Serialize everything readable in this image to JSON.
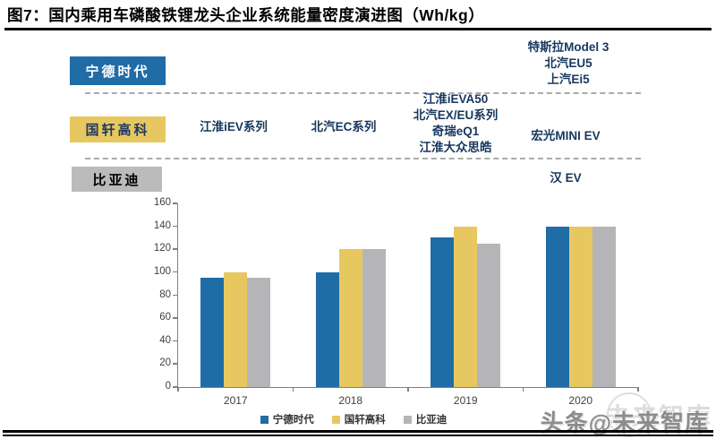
{
  "title": "图7：国内乘用车磷酸铁锂龙头企业系统能量密度演进图（Wh/kg）",
  "colors": {
    "catl_blue": "#1F6CA7",
    "gotion_yellow": "#E7C860",
    "byd_gray": "#B5B5B8",
    "annotation_navy": "#17375E",
    "gotion_box_text": "#1F3864",
    "axis_gray": "#7F7F7F"
  },
  "annotations": {
    "catl": {
      "label": "宁德时代",
      "y2020": [
        "特斯拉Model 3",
        "北汽EU5",
        "上汽Ei5"
      ]
    },
    "gotion": {
      "label": "国轩高科",
      "y2017": "江淮iEV系列",
      "y2018": "北汽EC系列",
      "y2019": [
        "江淮iEVA50",
        "北汽EX/EU系列",
        "奇瑞eQ1",
        "江淮大众思皓"
      ],
      "y2020": "宏光MINI EV"
    },
    "byd": {
      "label": "比亚迪",
      "y2020": "汉 EV"
    }
  },
  "chart_data": {
    "type": "bar",
    "title": "国内乘用车磷酸铁锂龙头企业系统能量密度演进（Wh/kg）",
    "categories": [
      "2017",
      "2018",
      "2019",
      "2020"
    ],
    "series": [
      {
        "name": "宁德时代",
        "color": "#1F6CA7",
        "values": [
          95,
          100,
          130,
          140
        ]
      },
      {
        "name": "国轩高科",
        "color": "#E7C860",
        "values": [
          100,
          120,
          140,
          140
        ]
      },
      {
        "name": "比亚迪",
        "color": "#B5B5B8",
        "values": [
          95,
          120,
          125,
          140
        ]
      }
    ],
    "xlabel": "",
    "ylabel": "",
    "ylim": [
      0,
      160
    ],
    "ytick_step": 20,
    "grid": false,
    "legend_position": "bottom"
  },
  "watermark": {
    "ghost": "未来智库",
    "text": "头条@未来智库"
  }
}
